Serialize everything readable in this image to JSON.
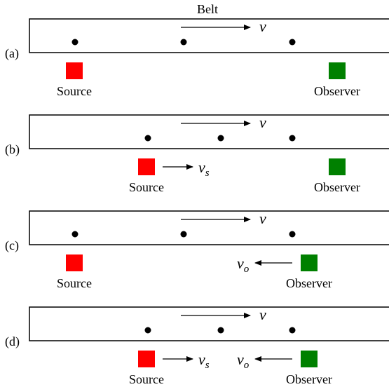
{
  "title": "Belt",
  "belt_velocity_symbol": "v",
  "source_label": "Source",
  "observer_label": "Observer",
  "source_velocity": {
    "symbol": "v",
    "subscript": "s"
  },
  "observer_velocity": {
    "symbol": "v",
    "subscript": "o"
  },
  "colors": {
    "source": "#ff0000",
    "observer": "#008000"
  },
  "panels": [
    {
      "label": "(a)",
      "source_moving": false,
      "observer_moving": false
    },
    {
      "label": "(b)",
      "source_moving": true,
      "observer_moving": false
    },
    {
      "label": "(c)",
      "source_moving": false,
      "observer_moving": true
    },
    {
      "label": "(d)",
      "source_moving": true,
      "observer_moving": true
    }
  ]
}
